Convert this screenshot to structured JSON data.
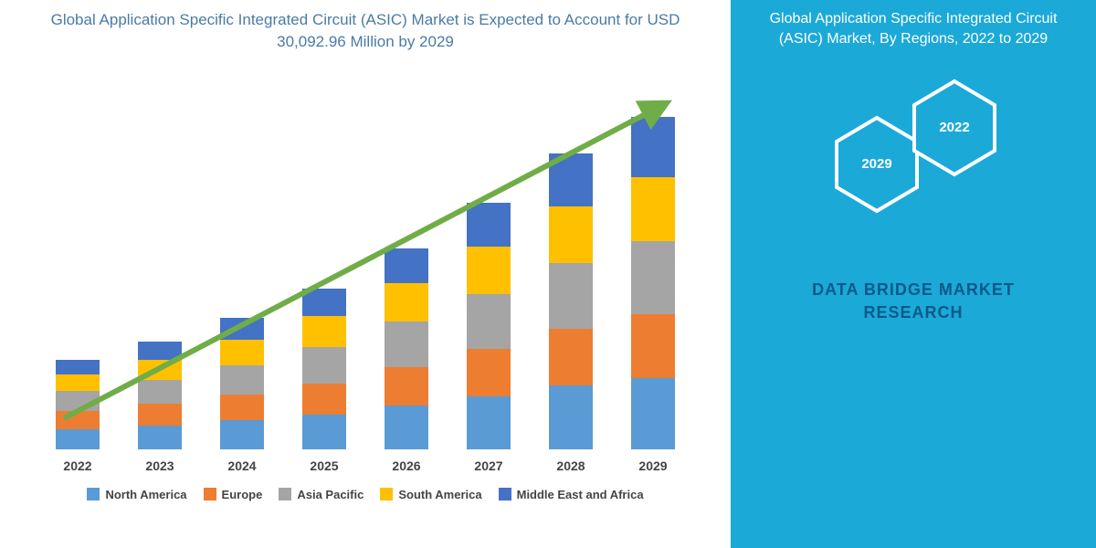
{
  "chart": {
    "title": "Global Application Specific Integrated Circuit (ASIC) Market is Expected to Account for USD 30,092.96 Million by 2029",
    "title_color": "#4a7ba6",
    "title_fontsize": 17,
    "type": "stacked-bar",
    "categories": [
      "2022",
      "2023",
      "2024",
      "2025",
      "2026",
      "2027",
      "2028",
      "2029"
    ],
    "series": [
      {
        "name": "North America",
        "color": "#5b9bd5",
        "values": [
          22,
          26,
          32,
          38,
          48,
          58,
          70,
          78
        ]
      },
      {
        "name": "Europe",
        "color": "#ed7d31",
        "values": [
          20,
          24,
          28,
          34,
          42,
          52,
          62,
          70
        ]
      },
      {
        "name": "Asia Pacific",
        "color": "#a5a5a5",
        "values": [
          22,
          26,
          32,
          40,
          50,
          60,
          72,
          80
        ]
      },
      {
        "name": "South America",
        "color": "#ffc000",
        "values": [
          18,
          22,
          28,
          34,
          42,
          52,
          62,
          70
        ]
      },
      {
        "name": "Middle East and Africa",
        "color": "#4472c4",
        "values": [
          16,
          20,
          24,
          30,
          38,
          48,
          58,
          66
        ]
      }
    ],
    "x_label_fontsize": 14,
    "legend_fontsize": 13,
    "arrow_color": "#70ad47",
    "arrow_width": 6,
    "background_color": "#ffffff"
  },
  "right": {
    "title": "Global Application Specific Integrated Circuit (ASIC) Market, By Regions, 2022 to 2029",
    "background_color": "#1ba9d8",
    "hex_stroke": "#ffffff",
    "hex_fill": "#1ba9d8",
    "hex1_label": "2029",
    "hex2_label": "2022",
    "brand_line1": "DATA BRIDGE MARKET",
    "brand_line2": "RESEARCH",
    "brand_color": "#0a5a8a"
  }
}
